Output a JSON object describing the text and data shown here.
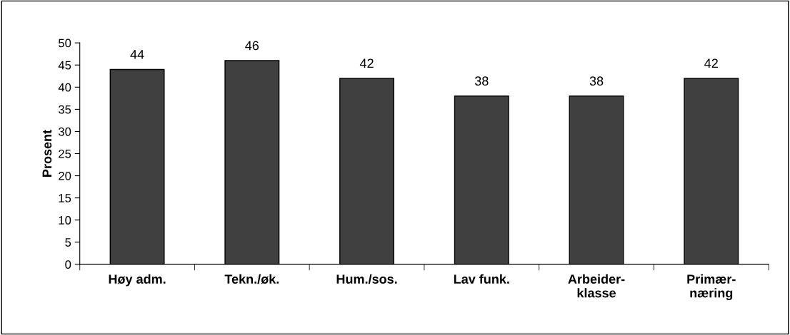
{
  "chart_data": {
    "type": "bar",
    "ylabel": "Prosent",
    "categories": [
      "Høy adm.",
      "Tekn./øk.",
      "Hum./sos.",
      "Lav funk.",
      "Arbeider-\nklasse",
      "Primær-\nnæring"
    ],
    "values": [
      44,
      46,
      42,
      38,
      38,
      42
    ],
    "color": "#404040",
    "ylim": [
      0,
      50
    ],
    "yticks": [
      0,
      5,
      10,
      15,
      20,
      25,
      30,
      35,
      40,
      45,
      50
    ],
    "data_labels": true,
    "grid": false,
    "legend": false
  }
}
